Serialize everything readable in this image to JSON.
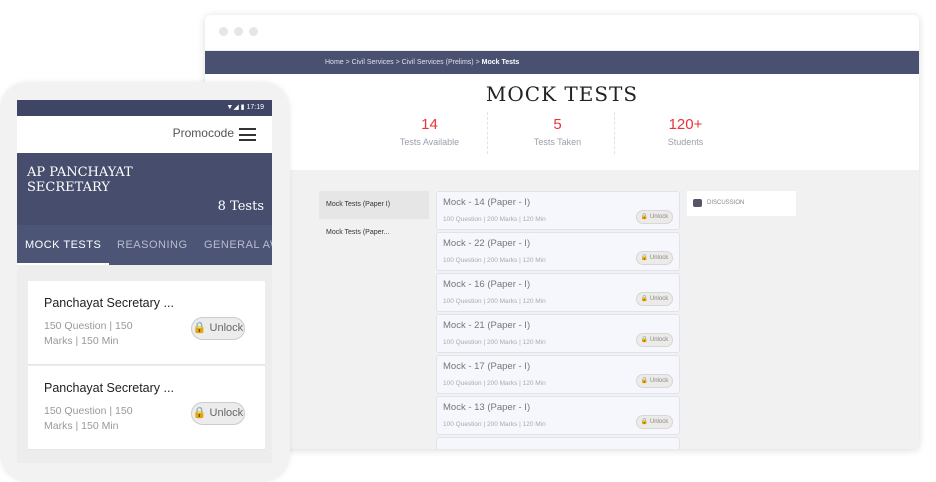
{
  "browser": {
    "breadcrumb": [
      "Home",
      "Civil Services",
      "Civil Services (Prelims)"
    ],
    "breadcrumb_current": "Mock Tests",
    "title": "MOCK TESTS",
    "stats": [
      {
        "value": "14",
        "label": "Tests Available"
      },
      {
        "value": "5",
        "label": "Tests Taken"
      },
      {
        "value": "120+",
        "label": "Students"
      }
    ],
    "menu": [
      "Mock Tests (Paper I)",
      "Mock Tests (Paper..."
    ],
    "tests": [
      {
        "title": "Mock - 14 (Paper - I)",
        "meta": "100 Question |  200 Marks | 120 Min"
      },
      {
        "title": "Mock - 22 (Paper - I)",
        "meta": "100 Question |  200 Marks | 120 Min"
      },
      {
        "title": "Mock - 16 (Paper - I)",
        "meta": "100 Question |  200 Marks | 120 Min"
      },
      {
        "title": "Mock - 21 (Paper - I)",
        "meta": "100 Question |  200 Marks | 120 Min"
      },
      {
        "title": "Mock - 17 (Paper - I)",
        "meta": "100 Question |  200 Marks | 120 Min"
      },
      {
        "title": "Mock - 13 (Paper - I)",
        "meta": "100 Question |  200 Marks | 120 Min"
      }
    ],
    "unlock": "🔒 Unlock",
    "discussion": "DISCUSSION"
  },
  "phone": {
    "time": "▼◢ ▮  17:19",
    "promocode": "Promocode",
    "title": "AP PANCHAYAT SECRETARY",
    "count": "8 Tests",
    "tabs": [
      "MOCK TESTS",
      "REASONING",
      "GENERAL AW"
    ],
    "cards": [
      {
        "title": "Panchayat Secretary ...",
        "meta": "150 Question |  150 Marks | 150 Min"
      },
      {
        "title": "Panchayat Secretary ...",
        "meta": "150 Question |  150 Marks | 150 Min"
      }
    ],
    "unlock": "🔒 Unlock"
  },
  "colors": {
    "nav": "#4a5170",
    "accent": "#e8333a"
  }
}
